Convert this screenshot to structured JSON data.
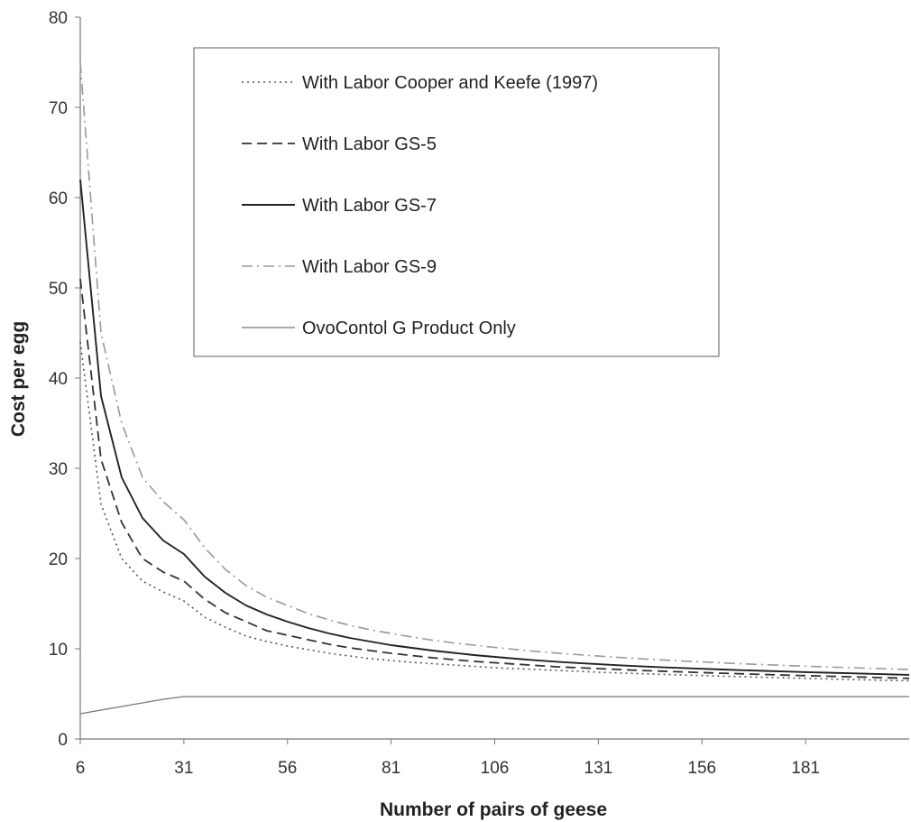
{
  "chart_data": {
    "type": "line",
    "xlabel": "Number of pairs of geese",
    "ylabel": "Cost per egg",
    "xlim": [
      6,
      206
    ],
    "ylim": [
      0,
      80
    ],
    "x_ticks": [
      6,
      31,
      56,
      81,
      106,
      131,
      156,
      181
    ],
    "y_ticks": [
      0,
      10,
      20,
      30,
      40,
      50,
      60,
      70,
      80
    ],
    "grid": false,
    "legend_position": "top-center",
    "x": [
      6,
      11,
      16,
      21,
      26,
      31,
      36,
      41,
      46,
      51,
      56,
      61,
      66,
      71,
      76,
      81,
      86,
      91,
      96,
      101,
      106,
      111,
      116,
      121,
      126,
      131,
      136,
      141,
      146,
      151,
      156,
      161,
      166,
      171,
      176,
      181,
      186,
      191,
      196,
      201,
      206
    ],
    "series": [
      {
        "name": "With Labor Cooper and Keefe (1997)",
        "style": "dotted",
        "color": "#555555",
        "values": [
          44.0,
          26.0,
          20.0,
          17.5,
          16.3,
          15.3,
          13.5,
          12.4,
          11.4,
          10.8,
          10.3,
          9.9,
          9.5,
          9.2,
          8.9,
          8.7,
          8.5,
          8.35,
          8.2,
          8.05,
          7.9,
          7.8,
          7.7,
          7.6,
          7.5,
          7.4,
          7.32,
          7.24,
          7.17,
          7.1,
          7.03,
          6.96,
          6.9,
          6.84,
          6.78,
          6.72,
          6.66,
          6.6,
          6.55,
          6.5,
          6.45
        ]
      },
      {
        "name": "With Labor GS-5",
        "style": "dashed",
        "color": "#333333",
        "values": [
          51.0,
          31.0,
          24.0,
          20.0,
          18.5,
          17.5,
          15.5,
          14.0,
          13.0,
          12.0,
          11.5,
          11.0,
          10.5,
          10.1,
          9.8,
          9.5,
          9.25,
          9.0,
          8.8,
          8.6,
          8.45,
          8.3,
          8.15,
          8.0,
          7.9,
          7.8,
          7.7,
          7.6,
          7.52,
          7.44,
          7.36,
          7.29,
          7.22,
          7.15,
          7.08,
          7.02,
          6.96,
          6.9,
          6.84,
          6.78,
          6.72
        ]
      },
      {
        "name": "With Labor GS-7",
        "style": "solid",
        "color": "#222222",
        "values": [
          62.0,
          38.0,
          29.0,
          24.5,
          22.0,
          20.5,
          18.0,
          16.2,
          14.8,
          13.8,
          13.0,
          12.3,
          11.7,
          11.2,
          10.8,
          10.4,
          10.1,
          9.8,
          9.55,
          9.3,
          9.1,
          8.9,
          8.72,
          8.56,
          8.42,
          8.29,
          8.17,
          8.06,
          7.96,
          7.87,
          7.78,
          7.7,
          7.62,
          7.55,
          7.48,
          7.41,
          7.35,
          7.29,
          7.23,
          7.17,
          7.11
        ]
      },
      {
        "name": "With Labor GS-9",
        "style": "dashdot",
        "color": "#999999",
        "values": [
          75.0,
          45.0,
          35.0,
          29.0,
          26.3,
          24.3,
          21.2,
          18.8,
          17.0,
          15.7,
          14.8,
          13.9,
          13.2,
          12.6,
          12.1,
          11.7,
          11.3,
          10.95,
          10.65,
          10.4,
          10.15,
          9.92,
          9.71,
          9.52,
          9.35,
          9.19,
          9.04,
          8.9,
          8.77,
          8.65,
          8.54,
          8.43,
          8.33,
          8.24,
          8.15,
          8.07,
          7.99,
          7.91,
          7.84,
          7.77,
          7.7
        ]
      },
      {
        "name": "OvoContol G Product Only",
        "style": "solid-thin",
        "color": "#777777",
        "values": [
          2.8,
          3.2,
          3.6,
          4.0,
          4.4,
          4.7,
          4.7,
          4.7,
          4.7,
          4.7,
          4.7,
          4.7,
          4.7,
          4.7,
          4.7,
          4.7,
          4.7,
          4.7,
          4.7,
          4.7,
          4.7,
          4.7,
          4.7,
          4.7,
          4.7,
          4.7,
          4.7,
          4.7,
          4.7,
          4.7,
          4.7,
          4.7,
          4.7,
          4.7,
          4.7,
          4.7,
          4.7,
          4.7,
          4.7,
          4.7,
          4.7
        ]
      }
    ]
  }
}
